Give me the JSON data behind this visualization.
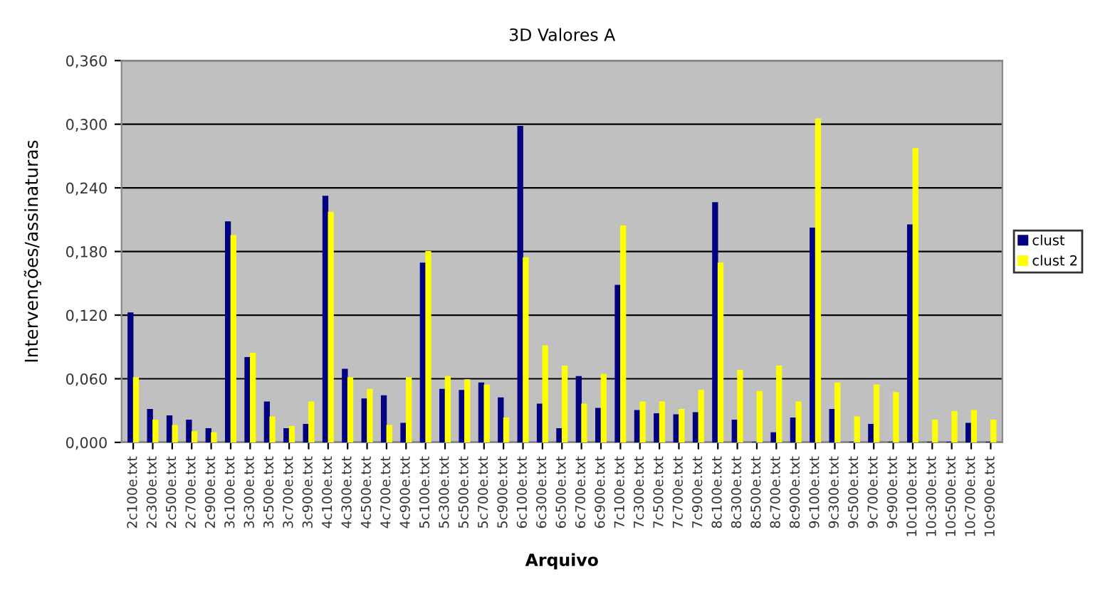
{
  "chart_data": {
    "type": "bar",
    "title": "3D Valores A",
    "xlabel": "Arquivo",
    "ylabel": "Intervenções/assinaturas",
    "categories": [
      "2c100e.txt",
      "2c300e.txt",
      "2c500e.txt",
      "2c700e.txt",
      "2c900e.txt",
      "3c100e.txt",
      "3c300e.txt",
      "3c500e.txt",
      "3c700e.txt",
      "3c900e.txt",
      "4c100e.txt",
      "4c300e.txt",
      "4c500e.txt",
      "4c700e.txt",
      "4c900e.txt",
      "5c100e.txt",
      "5c300e.txt",
      "5c500e.txt",
      "5c700e.txt",
      "5c900e.txt",
      "6c100e.txt",
      "6c300e.txt",
      "6c500e.txt",
      "6c700e.txt",
      "6c900e.txt",
      "7c100e.txt",
      "7c300e.txt",
      "7c500e.txt",
      "7c700e.txt",
      "7c900e.txt",
      "8c100e.txt",
      "8c300e.txt",
      "8c500e.txt",
      "8c700e.txt",
      "8c900e.txt",
      "9c100e.txt",
      "9c300e.txt",
      "9c500e.txt",
      "9c700e.txt",
      "9c900e.txt",
      "10c100e.txt",
      "10c300e.txt",
      "10c500e.txt",
      "10c700e.txt",
      "10c900e.txt"
    ],
    "series": [
      {
        "name": "clust",
        "color": "#000080",
        "values": [
          0.122,
          0.031,
          0.025,
          0.021,
          0.013,
          0.208,
          0.08,
          0.038,
          0.013,
          0.017,
          0.232,
          0.069,
          0.041,
          0.044,
          0.018,
          0.169,
          0.05,
          0.049,
          0.056,
          0.042,
          0.298,
          0.036,
          0.013,
          0.062,
          0.032,
          0.148,
          0.03,
          0.027,
          0.026,
          0.028,
          0.226,
          0.021,
          0,
          0.009,
          0.023,
          0.202,
          0.031,
          0,
          0.017,
          0,
          0.205,
          0,
          0,
          0.018,
          0
        ]
      },
      {
        "name": "clust 2",
        "color": "#ffff00",
        "values": [
          0.061,
          0.021,
          0.016,
          0.01,
          0.009,
          0.195,
          0.084,
          0.024,
          0.015,
          0.038,
          0.217,
          0.061,
          0.05,
          0.016,
          0.061,
          0.18,
          0.062,
          0.059,
          0.054,
          0.023,
          0.174,
          0.091,
          0.072,
          0.036,
          0.064,
          0.204,
          0.038,
          0.038,
          0.031,
          0.049,
          0.169,
          0.068,
          0.048,
          0.072,
          0.038,
          0.305,
          0.056,
          0.024,
          0.054,
          0.047,
          0.277,
          0.021,
          0.029,
          0.03,
          0.021
        ]
      }
    ],
    "ylim": [
      0,
      0.36
    ],
    "yticks": [
      {
        "value": 0,
        "label": "0,000"
      },
      {
        "value": 0.06,
        "label": "0,060"
      },
      {
        "value": 0.12,
        "label": "0,120"
      },
      {
        "value": 0.18,
        "label": "0,180"
      },
      {
        "value": 0.24,
        "label": "0,240"
      },
      {
        "value": 0.3,
        "label": "0,300"
      },
      {
        "value": 0.36,
        "label": "0,360"
      }
    ],
    "grid": "y",
    "legend": "right"
  }
}
